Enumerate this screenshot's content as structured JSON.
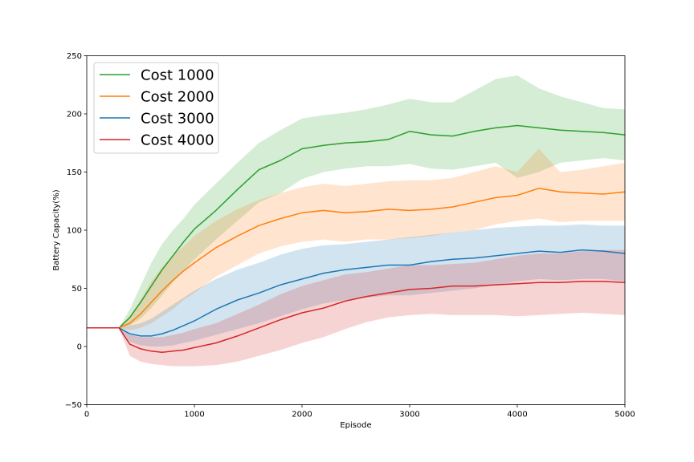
{
  "chart_data": {
    "type": "line",
    "title": "",
    "xlabel": "Episode",
    "ylabel": "Battery Capacity(%)",
    "xlim": [
      0,
      5000
    ],
    "ylim": [
      -50,
      250
    ],
    "xticks": [
      0,
      1000,
      2000,
      3000,
      4000,
      5000
    ],
    "yticks": [
      -50,
      0,
      50,
      100,
      150,
      200,
      250
    ],
    "grid": false,
    "legend_position": "top-left",
    "series": [
      {
        "name": "Cost 1000",
        "color": "#2ca02c",
        "x": [
          0,
          300,
          400,
          500,
          600,
          700,
          800,
          900,
          1000,
          1200,
          1400,
          1600,
          1800,
          2000,
          2200,
          2400,
          2600,
          2800,
          3000,
          3200,
          3400,
          3600,
          3800,
          4000,
          4200,
          4400,
          4600,
          4800,
          5000
        ],
        "mean": [
          16,
          16,
          25,
          38,
          52,
          66,
          78,
          90,
          101,
          117,
          135,
          152,
          160,
          170,
          173,
          175,
          176,
          178,
          185,
          182,
          181,
          185,
          188,
          190,
          188,
          186,
          185,
          184,
          182
        ],
        "lower": [
          16,
          16,
          18,
          24,
          33,
          44,
          55,
          65,
          75,
          92,
          108,
          124,
          132,
          144,
          150,
          153,
          155,
          155,
          157,
          153,
          152,
          155,
          158,
          145,
          150,
          158,
          160,
          162,
          160
        ],
        "upper": [
          16,
          16,
          32,
          52,
          72,
          88,
          100,
          110,
          122,
          140,
          158,
          175,
          186,
          196,
          199,
          201,
          204,
          208,
          213,
          210,
          210,
          220,
          230,
          233,
          222,
          215,
          210,
          205,
          204
        ]
      },
      {
        "name": "Cost 2000",
        "color": "#ff7f0e",
        "x": [
          0,
          300,
          400,
          500,
          600,
          700,
          800,
          900,
          1000,
          1200,
          1400,
          1600,
          1800,
          2000,
          2200,
          2400,
          2600,
          2800,
          3000,
          3200,
          3400,
          3600,
          3800,
          4000,
          4200,
          4400,
          4600,
          4800,
          5000
        ],
        "mean": [
          16,
          16,
          20,
          28,
          38,
          48,
          57,
          65,
          72,
          85,
          95,
          104,
          110,
          115,
          117,
          115,
          116,
          118,
          117,
          118,
          120,
          124,
          128,
          130,
          136,
          133,
          132,
          131,
          133
        ],
        "lower": [
          16,
          16,
          14,
          16,
          20,
          26,
          32,
          40,
          46,
          60,
          70,
          80,
          86,
          90,
          92,
          90,
          92,
          92,
          93,
          95,
          98,
          100,
          105,
          108,
          110,
          107,
          108,
          108,
          108
        ],
        "upper": [
          16,
          16,
          26,
          40,
          56,
          68,
          78,
          86,
          95,
          108,
          118,
          126,
          132,
          137,
          140,
          138,
          140,
          142,
          143,
          143,
          145,
          150,
          155,
          150,
          170,
          150,
          152,
          155,
          158
        ]
      },
      {
        "name": "Cost 3000",
        "color": "#1f77b4",
        "x": [
          0,
          300,
          400,
          500,
          600,
          700,
          800,
          900,
          1000,
          1200,
          1400,
          1600,
          1800,
          2000,
          2200,
          2400,
          2600,
          2800,
          3000,
          3200,
          3400,
          3600,
          3800,
          4000,
          4200,
          4400,
          4600,
          4800,
          5000
        ],
        "mean": [
          16,
          16,
          11,
          9,
          9,
          11,
          14,
          18,
          22,
          32,
          40,
          46,
          53,
          58,
          63,
          66,
          68,
          70,
          70,
          73,
          75,
          76,
          78,
          80,
          82,
          81,
          83,
          82,
          80
        ],
        "lower": [
          16,
          16,
          4,
          1,
          0,
          0,
          1,
          3,
          5,
          10,
          15,
          20,
          26,
          32,
          37,
          40,
          42,
          44,
          44,
          46,
          48,
          50,
          53,
          56,
          58,
          57,
          58,
          58,
          56
        ],
        "upper": [
          16,
          16,
          18,
          20,
          24,
          30,
          36,
          42,
          48,
          58,
          66,
          72,
          79,
          84,
          87,
          88,
          90,
          92,
          94,
          96,
          98,
          100,
          102,
          103,
          104,
          104,
          105,
          104,
          104
        ]
      },
      {
        "name": "Cost 4000",
        "color": "#d62728",
        "x": [
          0,
          300,
          400,
          500,
          600,
          700,
          800,
          900,
          1000,
          1200,
          1400,
          1600,
          1800,
          2000,
          2200,
          2400,
          2600,
          2800,
          3000,
          3200,
          3400,
          3600,
          3800,
          4000,
          4200,
          4400,
          4600,
          4800,
          5000
        ],
        "mean": [
          16,
          16,
          2,
          -2,
          -4,
          -5,
          -4,
          -3,
          -1,
          3,
          9,
          16,
          23,
          29,
          33,
          39,
          43,
          46,
          49,
          50,
          52,
          52,
          53,
          54,
          55,
          55,
          56,
          56,
          55
        ],
        "lower": [
          16,
          16,
          -8,
          -13,
          -15,
          -16,
          -17,
          -17,
          -17,
          -16,
          -13,
          -8,
          -3,
          3,
          8,
          15,
          21,
          25,
          27,
          28,
          27,
          27,
          27,
          26,
          27,
          28,
          29,
          28,
          27
        ],
        "upper": [
          16,
          16,
          10,
          8,
          8,
          8,
          10,
          12,
          15,
          20,
          28,
          36,
          45,
          52,
          57,
          62,
          64,
          67,
          70,
          70,
          71,
          72,
          75,
          78,
          80,
          80,
          82,
          83,
          83
        ]
      }
    ]
  }
}
